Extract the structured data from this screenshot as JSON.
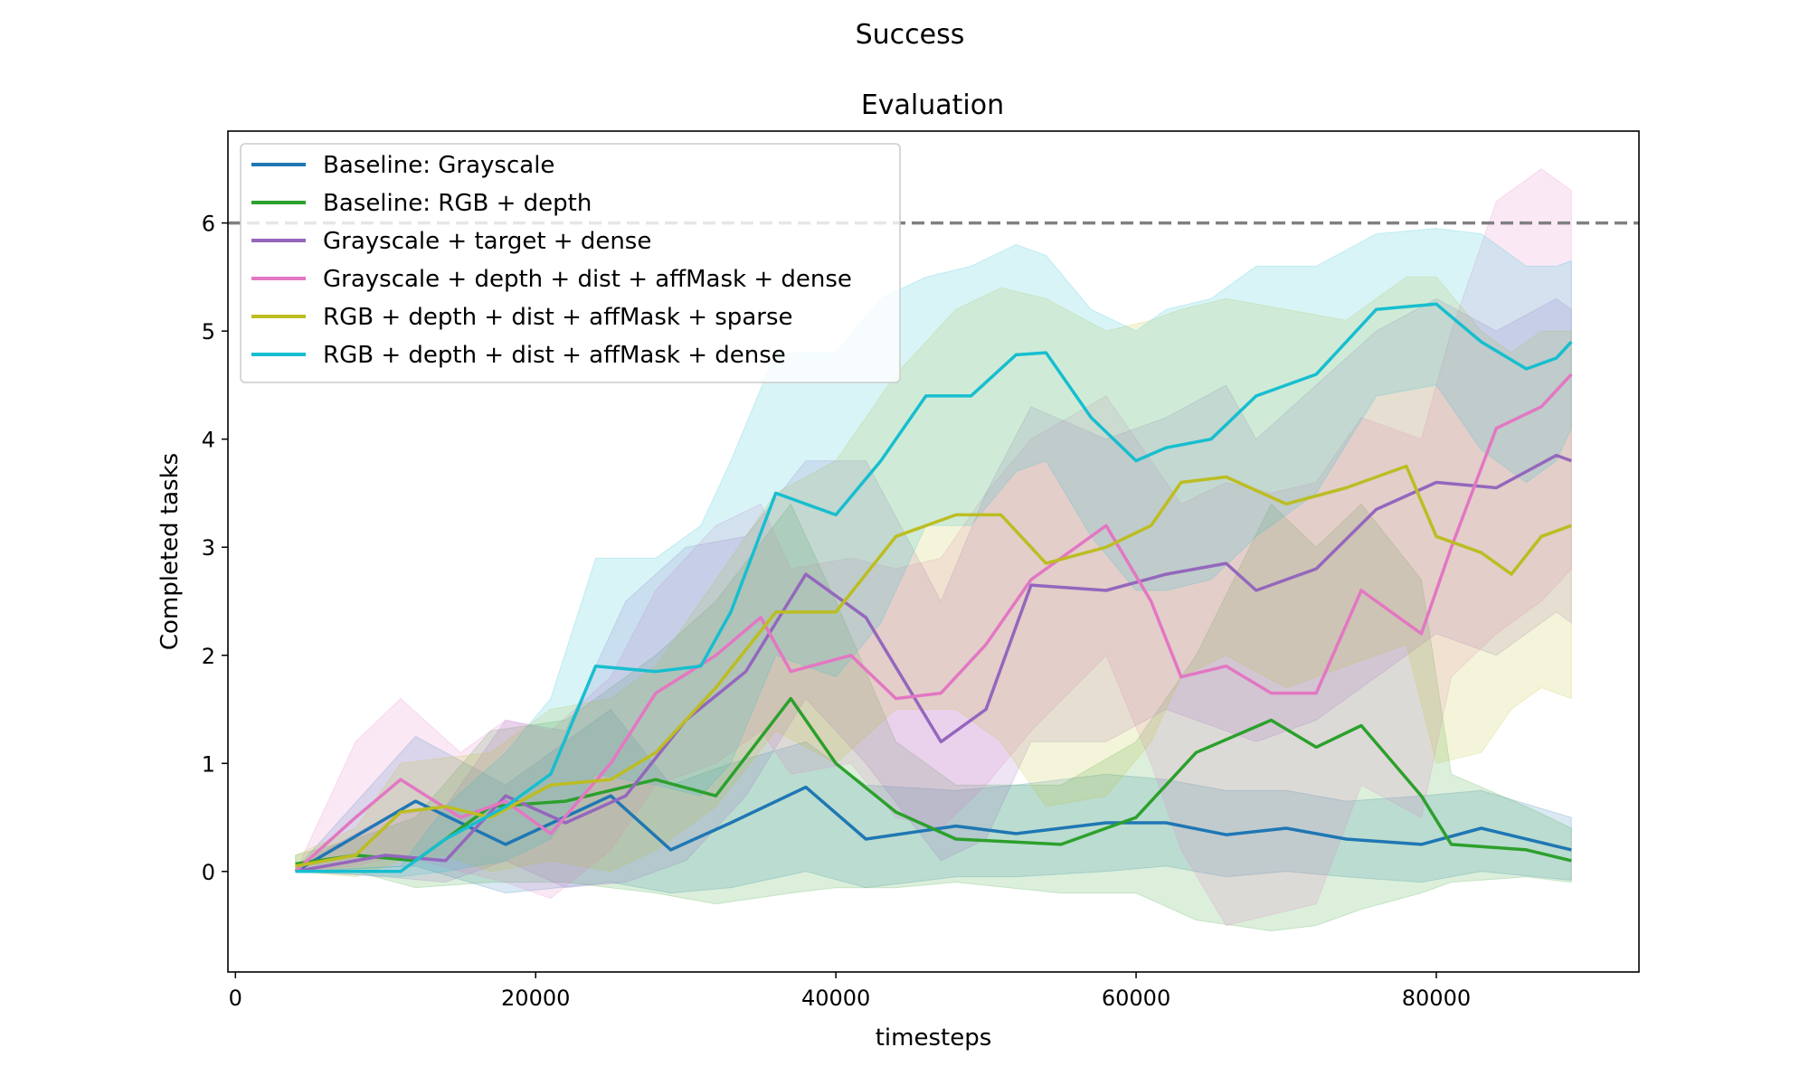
{
  "figure_title": "Success",
  "chart_data": {
    "type": "line",
    "title": "Evaluation",
    "xlabel": "timesteps",
    "ylabel": "Completed tasks",
    "xlim": [
      -500,
      93500
    ],
    "ylim": [
      -0.93,
      6.85
    ],
    "xticks": [
      0,
      20000,
      40000,
      60000,
      80000
    ],
    "yticks": [
      0,
      1,
      2,
      3,
      4,
      5,
      6
    ],
    "grid": false,
    "legend_position": "top-left",
    "reference_line": {
      "y": 6,
      "color": "#808080",
      "style": "dashed"
    },
    "series": [
      {
        "name": "Baseline: Grayscale",
        "color": "#1f77b4",
        "x": [
          4000,
          12000,
          18000,
          25000,
          29000,
          33000,
          38000,
          42000,
          48000,
          52000,
          58000,
          62000,
          66000,
          70000,
          74000,
          79000,
          83000,
          89000
        ],
        "y": [
          0.0,
          0.65,
          0.25,
          0.7,
          0.2,
          0.45,
          0.78,
          0.3,
          0.42,
          0.35,
          0.45,
          0.45,
          0.34,
          0.4,
          0.3,
          0.25,
          0.4,
          0.2
        ],
        "upper": [
          0.02,
          1.25,
          0.8,
          1.5,
          0.8,
          1.0,
          1.2,
          0.8,
          0.75,
          0.8,
          0.9,
          0.85,
          0.75,
          0.75,
          0.65,
          0.7,
          0.75,
          0.5
        ],
        "lower": [
          0.0,
          0.05,
          -0.2,
          -0.1,
          -0.2,
          -0.15,
          0.0,
          -0.15,
          -0.05,
          -0.05,
          0.0,
          0.05,
          -0.05,
          0.0,
          -0.05,
          -0.1,
          0.0,
          -0.08
        ]
      },
      {
        "name": "Baseline: RGB + depth",
        "color": "#2ca02c",
        "x": [
          4000,
          8000,
          12000,
          17000,
          22000,
          28000,
          32000,
          37000,
          40000,
          44000,
          48000,
          55000,
          60000,
          64000,
          69000,
          72000,
          75000,
          79000,
          81000,
          86000,
          89000
        ],
        "y": [
          0.07,
          0.15,
          0.1,
          0.6,
          0.65,
          0.85,
          0.7,
          1.6,
          1.0,
          0.55,
          0.3,
          0.25,
          0.5,
          1.1,
          1.4,
          1.15,
          1.35,
          0.7,
          0.25,
          0.2,
          0.1
        ],
        "upper": [
          0.15,
          0.3,
          0.5,
          1.3,
          1.4,
          2.0,
          2.5,
          3.4,
          2.5,
          1.2,
          0.8,
          0.8,
          1.2,
          2.0,
          3.4,
          3.0,
          3.4,
          2.7,
          0.9,
          0.6,
          0.4
        ],
        "lower": [
          0.0,
          0.0,
          -0.15,
          -0.1,
          -0.1,
          -0.2,
          -0.3,
          -0.2,
          -0.15,
          -0.15,
          -0.1,
          -0.2,
          -0.2,
          -0.45,
          -0.55,
          -0.5,
          -0.35,
          -0.2,
          -0.1,
          -0.05,
          -0.1
        ]
      },
      {
        "name": "Grayscale + target + dense",
        "color": "#9467bd",
        "x": [
          4000,
          10000,
          14000,
          18000,
          22000,
          26000,
          30000,
          34000,
          38000,
          42000,
          47000,
          50000,
          53000,
          58000,
          62000,
          66000,
          68000,
          72000,
          76000,
          80000,
          84000,
          88000,
          89000
        ],
        "y": [
          0.0,
          0.15,
          0.1,
          0.7,
          0.45,
          0.7,
          1.4,
          1.85,
          2.75,
          2.35,
          1.2,
          1.5,
          2.65,
          2.6,
          2.75,
          2.85,
          2.6,
          2.8,
          3.35,
          3.6,
          3.55,
          3.85,
          3.8
        ],
        "upper": [
          0.05,
          0.5,
          0.6,
          1.4,
          1.3,
          2.5,
          3.0,
          3.1,
          3.8,
          3.8,
          2.5,
          3.5,
          4.3,
          4.0,
          4.2,
          4.5,
          4.0,
          4.5,
          5.0,
          5.3,
          5.0,
          5.3,
          5.2
        ],
        "lower": [
          0.0,
          -0.05,
          -0.1,
          0.1,
          -0.15,
          -0.1,
          0.1,
          0.7,
          1.6,
          1.0,
          0.1,
          0.3,
          1.2,
          1.2,
          1.5,
          1.3,
          1.2,
          1.4,
          1.8,
          2.2,
          2.0,
          2.4,
          2.3
        ]
      },
      {
        "name": "Grayscale + depth + dist + affMask + dense",
        "color": "#e377c2",
        "x": [
          4000,
          8000,
          11000,
          15000,
          18000,
          21000,
          25000,
          28000,
          32000,
          35000,
          37000,
          41000,
          44000,
          47000,
          50000,
          53000,
          58000,
          61000,
          63000,
          66000,
          69000,
          72000,
          75000,
          79000,
          81000,
          84000,
          87000,
          89000
        ],
        "y": [
          0.0,
          0.5,
          0.85,
          0.5,
          0.65,
          0.35,
          1.0,
          1.65,
          2.0,
          2.35,
          1.85,
          2.0,
          1.6,
          1.65,
          2.1,
          2.7,
          3.2,
          2.5,
          1.8,
          1.9,
          1.65,
          1.65,
          2.6,
          2.2,
          3.0,
          4.1,
          4.3,
          4.6
        ],
        "upper": [
          0.0,
          1.2,
          1.6,
          1.1,
          1.4,
          1.3,
          1.8,
          2.6,
          3.2,
          3.4,
          2.8,
          2.9,
          2.8,
          2.9,
          3.5,
          4.0,
          4.4,
          3.8,
          3.4,
          3.6,
          3.5,
          3.6,
          4.2,
          4.0,
          5.0,
          6.2,
          6.5,
          6.3
        ],
        "lower": [
          0.0,
          0.05,
          0.15,
          0.0,
          -0.1,
          -0.25,
          0.2,
          0.8,
          1.0,
          1.3,
          0.9,
          1.0,
          0.5,
          0.4,
          0.8,
          1.3,
          2.0,
          1.0,
          0.2,
          -0.5,
          -0.4,
          -0.3,
          0.8,
          0.5,
          1.8,
          2.2,
          2.5,
          2.8
        ]
      },
      {
        "name": "RGB + depth + dist + affMask + sparse",
        "color": "#bcbd22",
        "x": [
          4000,
          8000,
          11000,
          14000,
          17000,
          21000,
          25000,
          28000,
          32000,
          36000,
          40000,
          44000,
          48000,
          51000,
          54000,
          58000,
          61000,
          63000,
          66000,
          70000,
          74000,
          78000,
          80000,
          83000,
          85000,
          87000,
          89000
        ],
        "y": [
          0.05,
          0.15,
          0.55,
          0.6,
          0.5,
          0.8,
          0.85,
          1.1,
          1.7,
          2.4,
          2.4,
          3.1,
          3.3,
          3.3,
          2.85,
          3.0,
          3.2,
          3.6,
          3.65,
          3.4,
          3.55,
          3.75,
          3.1,
          2.95,
          2.75,
          3.1,
          3.2
        ],
        "upper": [
          0.15,
          0.4,
          1.0,
          1.05,
          1.1,
          1.5,
          1.6,
          1.9,
          2.7,
          3.5,
          3.8,
          4.6,
          5.2,
          5.4,
          5.3,
          5.0,
          5.1,
          5.2,
          5.3,
          5.2,
          5.1,
          5.5,
          5.5,
          5.0,
          4.8,
          5.0,
          5.0
        ],
        "lower": [
          0.0,
          -0.05,
          0.1,
          0.15,
          0.0,
          0.1,
          0.0,
          0.2,
          0.6,
          1.3,
          1.0,
          1.5,
          1.5,
          1.2,
          0.6,
          0.7,
          1.2,
          1.8,
          2.0,
          1.7,
          1.9,
          2.1,
          1.0,
          1.1,
          1.5,
          1.7,
          1.6
        ]
      },
      {
        "name": "RGB + depth + dist + affMask + dense",
        "color": "#17becf",
        "x": [
          4000,
          11000,
          14000,
          18000,
          21000,
          24000,
          28000,
          31000,
          33000,
          36000,
          40000,
          43000,
          46000,
          49000,
          52000,
          54000,
          57000,
          60000,
          62000,
          65000,
          68000,
          72000,
          76000,
          80000,
          83000,
          86000,
          88000,
          89000
        ],
        "y": [
          0.0,
          0.0,
          0.3,
          0.6,
          0.9,
          1.9,
          1.85,
          1.9,
          2.4,
          3.5,
          3.3,
          3.8,
          4.4,
          4.4,
          4.78,
          4.8,
          4.2,
          3.8,
          3.92,
          4.0,
          4.4,
          4.6,
          5.2,
          5.25,
          4.9,
          4.65,
          4.75,
          4.9
        ],
        "upper": [
          0.0,
          0.05,
          0.6,
          1.1,
          1.6,
          2.9,
          2.9,
          3.2,
          3.8,
          4.8,
          4.8,
          5.3,
          5.5,
          5.6,
          5.8,
          5.7,
          5.2,
          5.0,
          5.2,
          5.3,
          5.6,
          5.6,
          5.9,
          5.95,
          5.9,
          5.6,
          5.6,
          5.65
        ],
        "lower": [
          0.0,
          -0.05,
          0.0,
          0.1,
          0.3,
          0.9,
          0.8,
          0.7,
          1.0,
          2.0,
          1.8,
          2.3,
          3.2,
          3.2,
          3.7,
          3.8,
          3.1,
          2.6,
          2.6,
          2.7,
          3.1,
          3.5,
          4.4,
          4.5,
          3.9,
          3.6,
          3.8,
          4.1
        ]
      }
    ]
  }
}
